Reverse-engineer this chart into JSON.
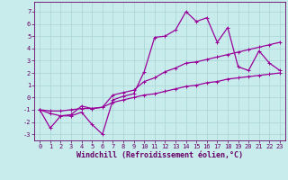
{
  "xlabel": "Windchill (Refroidissement éolien,°C)",
  "bg_color": "#c8ecec",
  "grid_color": "#a8d4d4",
  "line_color": "#990099",
  "xlim": [
    -0.5,
    23.5
  ],
  "ylim": [
    -3.5,
    7.8
  ],
  "xticks": [
    0,
    1,
    2,
    3,
    4,
    5,
    6,
    7,
    8,
    9,
    10,
    11,
    12,
    13,
    14,
    15,
    16,
    17,
    18,
    19,
    20,
    21,
    22,
    23
  ],
  "yticks": [
    -3,
    -2,
    -1,
    0,
    1,
    2,
    3,
    4,
    5,
    6,
    7
  ],
  "line1_x": [
    0,
    1,
    2,
    3,
    4,
    5,
    6,
    7,
    8,
    9,
    10,
    11,
    12,
    13,
    14,
    15,
    16,
    17,
    18,
    19,
    20,
    21,
    22,
    23
  ],
  "line1_y": [
    -1.0,
    -2.5,
    -1.5,
    -1.5,
    -1.2,
    -2.2,
    -3.0,
    -0.2,
    0.1,
    0.3,
    2.1,
    4.9,
    5.0,
    5.5,
    7.0,
    6.2,
    6.5,
    4.5,
    5.7,
    2.5,
    2.2,
    3.8,
    2.8,
    2.2
  ],
  "line2_x": [
    0,
    1,
    2,
    3,
    4,
    5,
    6,
    7,
    8,
    9,
    10,
    11,
    12,
    13,
    14,
    15,
    16,
    17,
    18,
    19,
    20,
    21,
    22,
    23
  ],
  "line2_y": [
    -1.0,
    -1.3,
    -1.5,
    -1.4,
    -0.7,
    -0.9,
    -0.8,
    0.2,
    0.4,
    0.6,
    1.3,
    1.6,
    2.1,
    2.4,
    2.8,
    2.9,
    3.1,
    3.3,
    3.5,
    3.7,
    3.9,
    4.1,
    4.3,
    4.5
  ],
  "line3_x": [
    0,
    1,
    2,
    3,
    4,
    5,
    6,
    7,
    8,
    9,
    10,
    11,
    12,
    13,
    14,
    15,
    16,
    17,
    18,
    19,
    20,
    21,
    22,
    23
  ],
  "line3_y": [
    -1.0,
    -1.1,
    -1.1,
    -1.0,
    -0.9,
    -0.9,
    -0.8,
    -0.4,
    -0.2,
    0.0,
    0.2,
    0.3,
    0.5,
    0.7,
    0.9,
    1.0,
    1.2,
    1.3,
    1.5,
    1.6,
    1.7,
    1.8,
    1.9,
    2.0
  ],
  "marker": "+",
  "markersize": 3,
  "linewidth": 0.9,
  "tick_fontsize": 5,
  "xlabel_fontsize": 6,
  "spine_color": "#660066"
}
